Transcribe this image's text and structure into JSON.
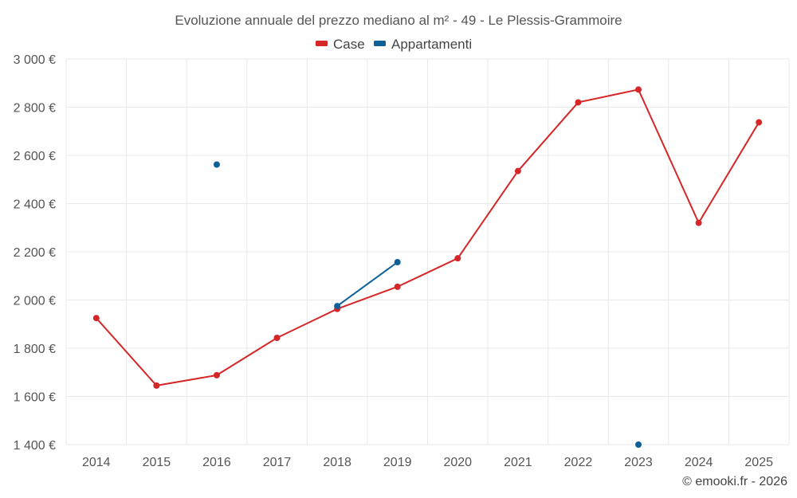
{
  "chart_data": {
    "type": "line",
    "title": "Evoluzione annuale del prezzo mediano al m² - 49 - Le Plessis-Grammoire",
    "categories": [
      "2014",
      "2015",
      "2016",
      "2017",
      "2018",
      "2019",
      "2020",
      "2021",
      "2022",
      "2023",
      "2024",
      "2025"
    ],
    "ylim": [
      1400,
      3000
    ],
    "yticks": [
      1400,
      1600,
      1800,
      2000,
      2200,
      2400,
      2600,
      2800,
      3000
    ],
    "ytick_labels": [
      "1 400 €",
      "1 600 €",
      "1 800 €",
      "2 000 €",
      "2 200 €",
      "2 400 €",
      "2 600 €",
      "2 800 €",
      "3 000 €"
    ],
    "grid": true,
    "legend_position": "top-center",
    "series": [
      {
        "name": "Case",
        "color": "#d62728",
        "values": [
          1925,
          1645,
          1688,
          1843,
          1963,
          2055,
          2173,
          2535,
          2820,
          2873,
          2320,
          2737
        ]
      },
      {
        "name": "Appartamenti",
        "color": "#0e6198",
        "values": [
          null,
          null,
          2562,
          null,
          1975,
          2157,
          null,
          null,
          null,
          1400,
          null,
          null
        ]
      }
    ]
  },
  "credit": "© emooki.fr - 2026"
}
